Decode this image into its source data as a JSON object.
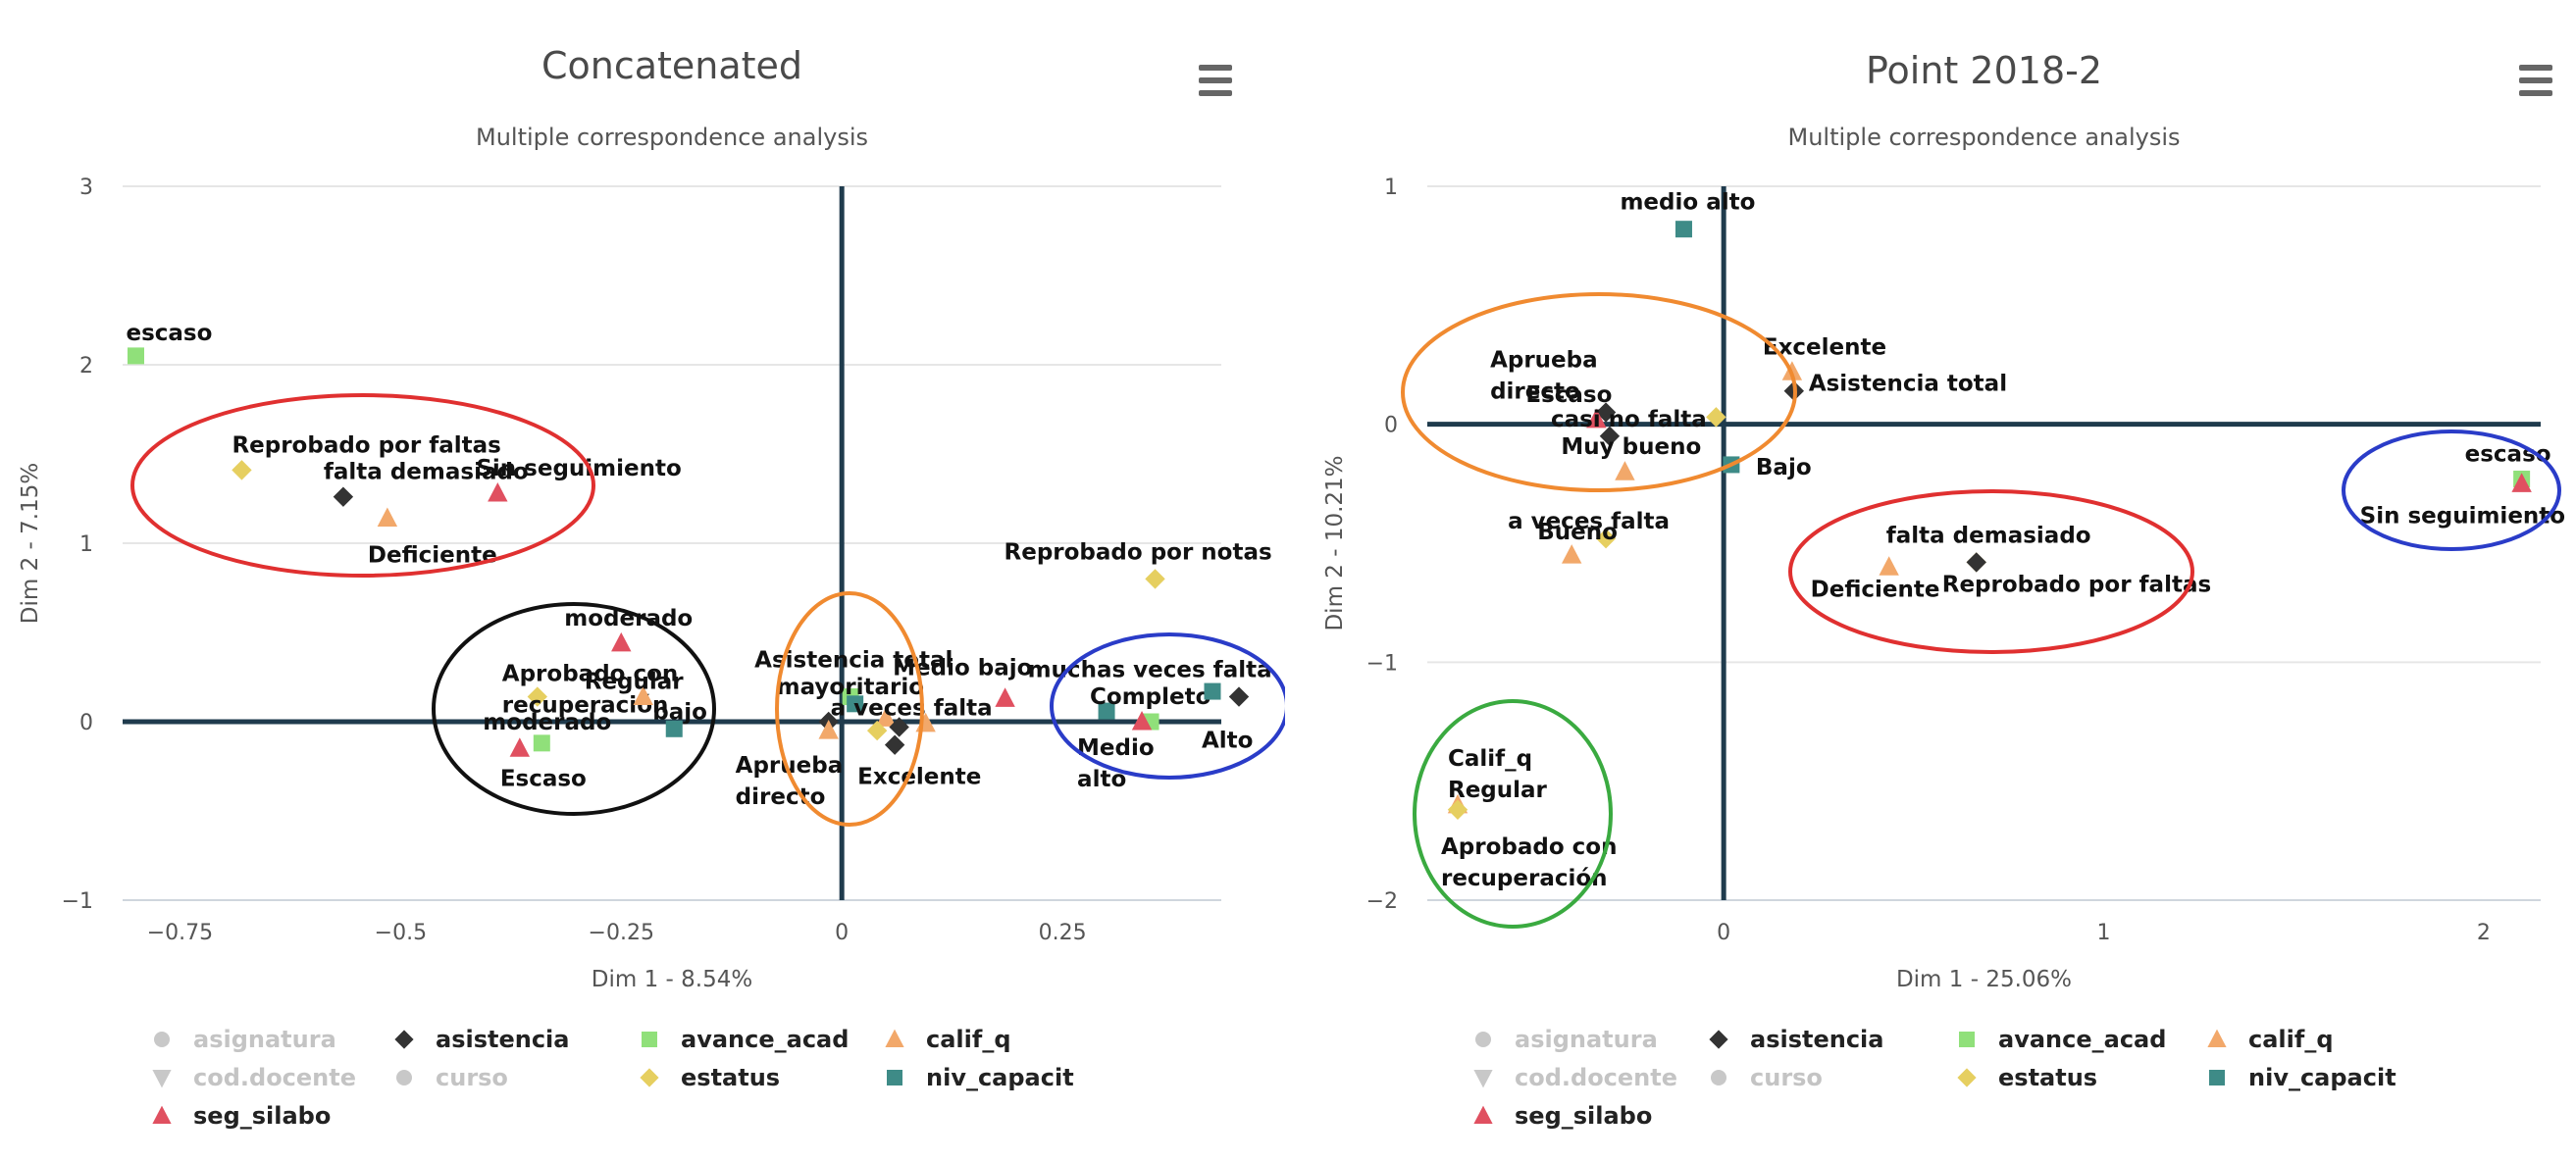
{
  "colors": {
    "asignatura": "#c8c8c8",
    "cod.docente": "#c8c8c8",
    "curso": "#c8c8c8",
    "asistencia": "#333333",
    "avance_acad": "#90e07a",
    "calif_q": "#f2a86a",
    "estatus": "#e6cf60",
    "niv_capacit": "#3e8b87",
    "seg_silabo": "#e05060",
    "axis": "#1f3b4d",
    "grid": "#e6e6e6",
    "ellipse_red": "#e03030",
    "ellipse_black": "#111111",
    "ellipse_orange": "#f08a30",
    "ellipse_blue": "#2a3cc8",
    "ellipse_green": "#3aaa40"
  },
  "legend": [
    {
      "name": "asignatura",
      "symbol": "circle",
      "hidden": true
    },
    {
      "name": "asistencia",
      "symbol": "diamond",
      "hidden": false
    },
    {
      "name": "avance_acad",
      "symbol": "square",
      "hidden": false
    },
    {
      "name": "calif_q",
      "symbol": "triangle",
      "hidden": false
    },
    {
      "name": "cod.docente",
      "symbol": "triangle-down",
      "hidden": true
    },
    {
      "name": "curso",
      "symbol": "circle",
      "hidden": true
    },
    {
      "name": "estatus",
      "symbol": "diamond",
      "hidden": false
    },
    {
      "name": "niv_capacit",
      "symbol": "square",
      "hidden": false
    },
    {
      "name": "seg_silabo",
      "symbol": "triangle",
      "hidden": false
    }
  ],
  "chart_data": [
    {
      "type": "scatter",
      "title": "Concatenated",
      "subtitle": "Multiple correspondence analysis",
      "xlabel": "Dim 1 - 8.54%",
      "ylabel": "Dim 2 - 7.15%",
      "xlim": [
        -0.815,
        0.43
      ],
      "ylim": [
        -1,
        3
      ],
      "xticks": [
        -0.75,
        -0.5,
        -0.25,
        0,
        0.25
      ],
      "xtick_labels": [
        "−0.75",
        "−0.5",
        "−0.25",
        "0",
        "0.25"
      ],
      "yticks": [
        -1,
        0,
        1,
        2,
        3
      ],
      "ytick_labels": [
        "−1",
        "0",
        "1",
        "2",
        "3"
      ],
      "grid": true,
      "legend_position": "bottom-left",
      "points": [
        {
          "series": "avance_acad",
          "x": -0.8,
          "y": 2.05,
          "label": "escaso"
        },
        {
          "series": "estatus",
          "x": -0.68,
          "y": 1.41,
          "label": "Reprobado por faltas"
        },
        {
          "series": "asistencia",
          "x": -0.565,
          "y": 1.26,
          "label": "falta demasiado"
        },
        {
          "series": "calif_q",
          "x": -0.515,
          "y": 1.14,
          "label": "Deficiente"
        },
        {
          "series": "seg_silabo",
          "x": -0.39,
          "y": 1.28,
          "label": "Sin seguimiento"
        },
        {
          "series": "seg_silabo",
          "x": -0.25,
          "y": 0.44,
          "label": "moderado"
        },
        {
          "series": "estatus",
          "x": -0.345,
          "y": 0.14,
          "label": "Aprobado con recuperación"
        },
        {
          "series": "calif_q",
          "x": -0.225,
          "y": 0.14,
          "label": "Regular"
        },
        {
          "series": "niv_capacit",
          "x": -0.19,
          "y": -0.04,
          "label": "bajo"
        },
        {
          "series": "avance_acad",
          "x": -0.34,
          "y": -0.12,
          "label": "moderado"
        },
        {
          "series": "seg_silabo",
          "x": -0.365,
          "y": -0.15,
          "label": "Escaso"
        },
        {
          "series": "asistencia",
          "x": -0.015,
          "y": 0.0,
          "label": "Aprueba directo"
        },
        {
          "series": "calif_q",
          "x": -0.015,
          "y": -0.05,
          "label": ""
        },
        {
          "series": "avance_acad",
          "x": 0.01,
          "y": 0.14,
          "label": "Asistencia total"
        },
        {
          "series": "niv_capacit",
          "x": 0.015,
          "y": 0.1,
          "label": "mayoritario"
        },
        {
          "series": "calif_q",
          "x": 0.05,
          "y": 0.02,
          "label": "Medio bajo"
        },
        {
          "series": "asistencia",
          "x": 0.065,
          "y": -0.03,
          "label": "a veces falta"
        },
        {
          "series": "estatus",
          "x": 0.04,
          "y": -0.05,
          "label": ""
        },
        {
          "series": "asistencia",
          "x": 0.06,
          "y": -0.13,
          "label": "Excelente"
        },
        {
          "series": "calif_q",
          "x": 0.095,
          "y": -0.01,
          "label": ""
        },
        {
          "series": "estatus",
          "x": 0.355,
          "y": 0.8,
          "label": "Reprobado por notas"
        },
        {
          "series": "seg_silabo",
          "x": 0.185,
          "y": 0.13,
          "label": "muchas veces falta"
        },
        {
          "series": "niv_capacit",
          "x": 0.3,
          "y": 0.06,
          "label": "Medio alto"
        },
        {
          "series": "avance_acad",
          "x": 0.35,
          "y": 0.0,
          "label": "Completo"
        },
        {
          "series": "seg_silabo",
          "x": 0.34,
          "y": 0.0,
          "label": ""
        },
        {
          "series": "niv_capacit",
          "x": 0.42,
          "y": 0.17,
          "label": ""
        },
        {
          "series": "asistencia",
          "x": 0.45,
          "y": 0.14,
          "label": "Alto"
        }
      ]
    },
    {
      "type": "scatter",
      "title": "Point 2018-2",
      "subtitle": "Multiple correspondence analysis",
      "xlabel": "Dim 1 - 25.06%",
      "ylabel": "Dim 2 - 10.21%",
      "xlim": [
        -0.78,
        2.15
      ],
      "ylim": [
        -2,
        1
      ],
      "xticks": [
        0,
        1,
        2
      ],
      "xtick_labels": [
        "0",
        "1",
        "2"
      ],
      "yticks": [
        -2,
        -1,
        0,
        1
      ],
      "ytick_labels": [
        "−2",
        "−1",
        "0",
        "1"
      ],
      "grid": true,
      "legend_position": "bottom-left",
      "points": [
        {
          "series": "niv_capacit",
          "x": -0.105,
          "y": 0.82,
          "label": "medio alto"
        },
        {
          "series": "calif_q",
          "x": 0.18,
          "y": 0.22,
          "label": "Excelente"
        },
        {
          "series": "asistencia",
          "x": 0.185,
          "y": 0.14,
          "label": "Asistencia total"
        },
        {
          "series": "asistencia",
          "x": -0.31,
          "y": 0.05,
          "label": "Aprueba directo"
        },
        {
          "series": "seg_silabo",
          "x": -0.335,
          "y": 0.02,
          "label": "Escaso"
        },
        {
          "series": "asistencia",
          "x": -0.3,
          "y": -0.05,
          "label": "casi no falta"
        },
        {
          "series": "estatus",
          "x": -0.02,
          "y": 0.03,
          "label": ""
        },
        {
          "series": "calif_q",
          "x": -0.26,
          "y": -0.2,
          "label": "Muy bueno"
        },
        {
          "series": "niv_capacit",
          "x": 0.02,
          "y": -0.17,
          "label": "Bajo"
        },
        {
          "series": "estatus",
          "x": -0.31,
          "y": -0.48,
          "label": "a veces falta"
        },
        {
          "series": "calif_q",
          "x": -0.4,
          "y": -0.55,
          "label": "Bueno"
        },
        {
          "series": "calif_q",
          "x": 0.435,
          "y": -0.6,
          "label": "Deficiente"
        },
        {
          "series": "estatus",
          "x": 0.665,
          "y": -0.58,
          "label": "falta demasiado"
        },
        {
          "series": "asistencia",
          "x": 0.665,
          "y": -0.58,
          "label": "Reprobado por faltas"
        },
        {
          "series": "avance_acad",
          "x": 2.1,
          "y": -0.23,
          "label": "escaso"
        },
        {
          "series": "seg_silabo",
          "x": 2.1,
          "y": -0.25,
          "label": "Sin seguimiento"
        },
        {
          "series": "calif_q",
          "x": -0.7,
          "y": -1.6,
          "label": "Calif_q Regular"
        },
        {
          "series": "estatus",
          "x": -0.7,
          "y": -1.62,
          "label": "Aprobado con recuperación"
        }
      ]
    }
  ]
}
